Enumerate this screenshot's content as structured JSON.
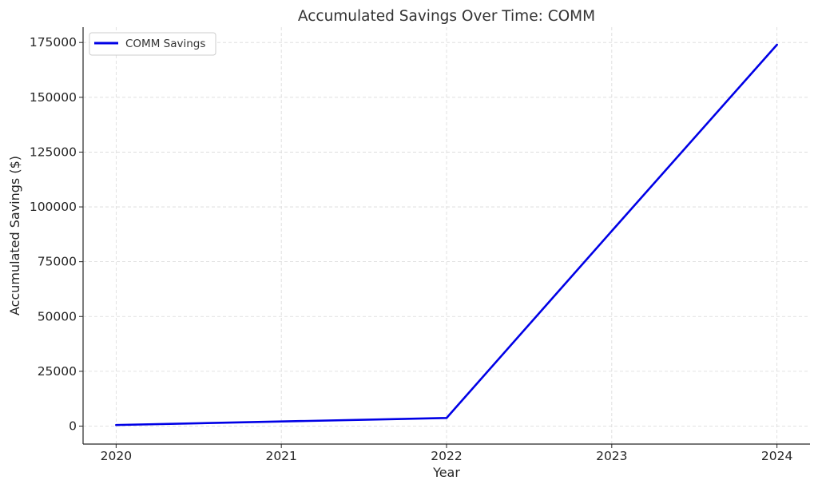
{
  "chart_data": {
    "type": "line",
    "title": "Accumulated Savings Over Time: COMM",
    "xlabel": "Year",
    "ylabel": "Accumulated Savings ($)",
    "x": [
      2020,
      2021,
      2022,
      2023,
      2024
    ],
    "x_ticks": [
      "2020",
      "2021",
      "2022",
      "2023",
      "2024"
    ],
    "y_ticks": [
      "0",
      "25000",
      "50000",
      "75000",
      "100000",
      "125000",
      "150000",
      "175000"
    ],
    "xlim": [
      2019.8,
      2024.2
    ],
    "ylim": [
      -8200,
      182000
    ],
    "grid": true,
    "legend_position": "top-left",
    "series": [
      {
        "name": "COMM Savings",
        "color": "#0000e6",
        "values": [
          500,
          2100,
          3700,
          89000,
          174000
        ]
      }
    ]
  }
}
